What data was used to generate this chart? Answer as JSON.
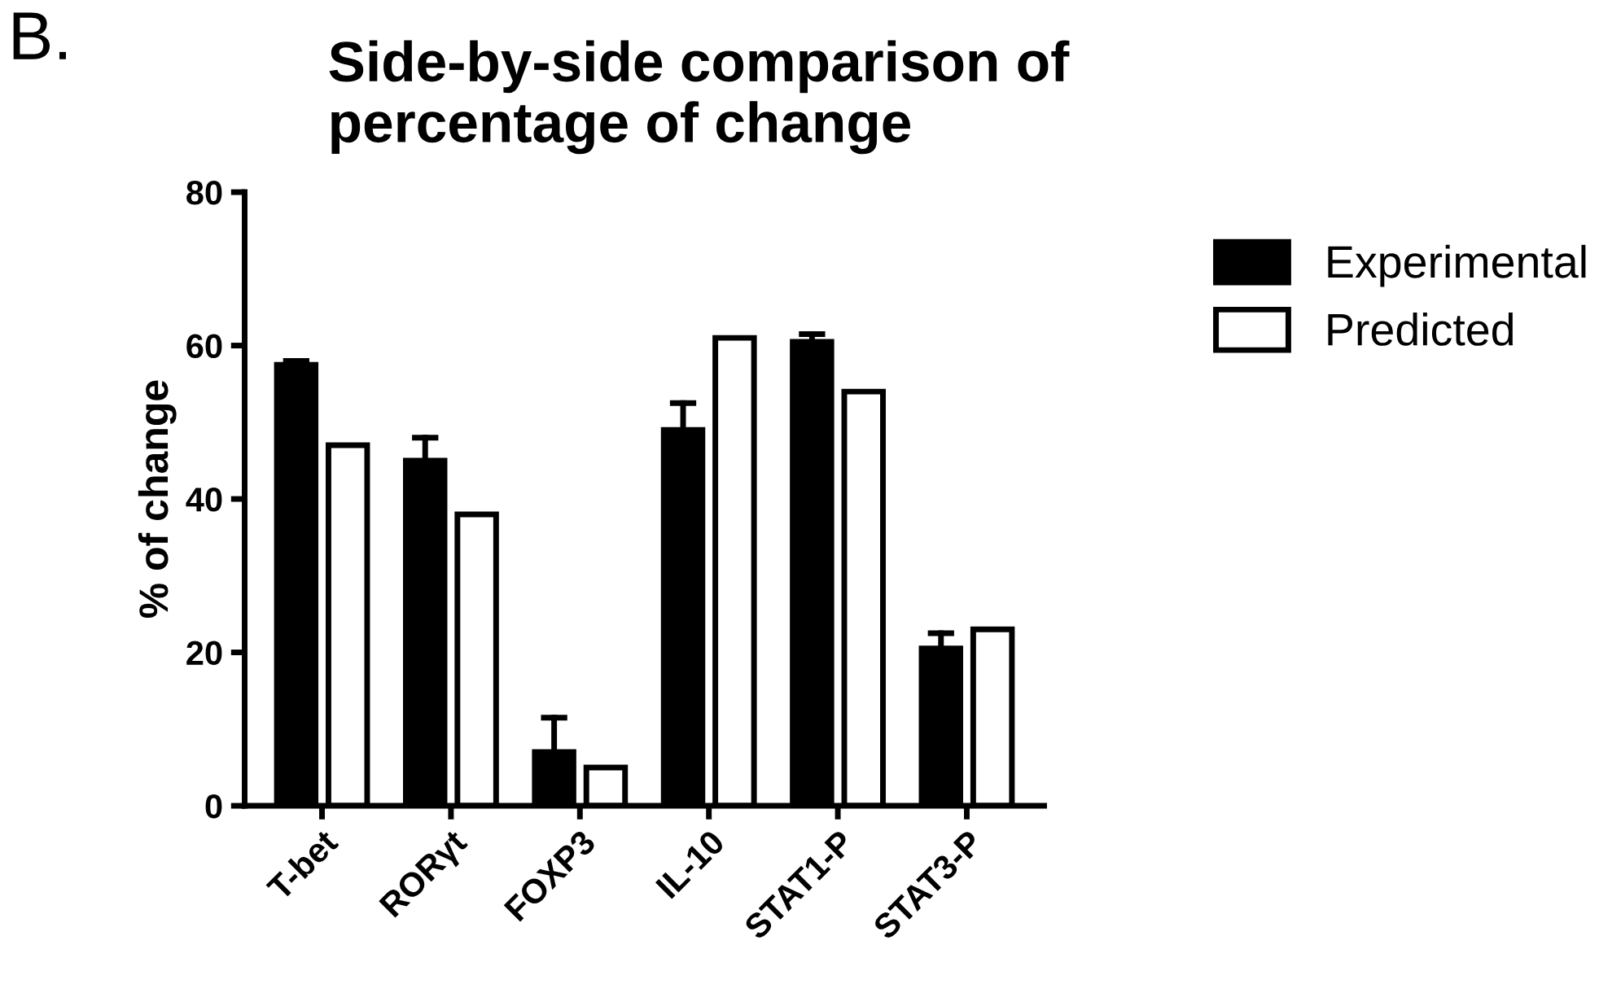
{
  "chart_data": {
    "type": "bar",
    "title": "Side-by-side comparison of\npercentage of change",
    "ylabel": "% of change",
    "annotations": [
      "B."
    ],
    "categories": [
      "T-bet",
      "RORγt",
      "FOXP3",
      "IL-10",
      "STAT1-P",
      "STAT3-P"
    ],
    "series": [
      {
        "name": "Experimental",
        "color": "#000000",
        "values": [
          57.5,
          45,
          7,
          49,
          60.5,
          20.5
        ],
        "errors": [
          [
            57.5,
            58
          ],
          [
            45,
            48
          ],
          [
            7,
            11.5
          ],
          [
            49,
            52.5
          ],
          [
            60.5,
            61.5
          ],
          [
            20.5,
            22.5
          ]
        ]
      },
      {
        "name": "Predicted",
        "color": "#ffffff",
        "values": [
          47,
          38,
          5,
          61,
          54,
          23
        ]
      }
    ],
    "ylim": [
      0,
      80
    ],
    "yticks": [
      0,
      20,
      40,
      60,
      80
    ],
    "grid": false,
    "legend": "top right"
  }
}
